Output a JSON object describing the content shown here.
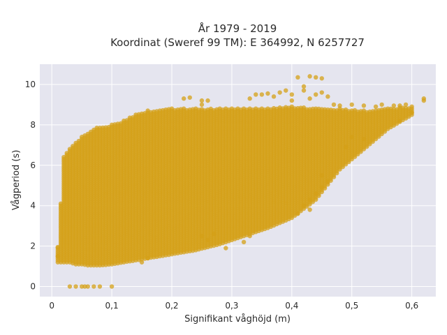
{
  "chart_data": {
    "type": "scatter",
    "title_line1": "År 1979 - 2019",
    "title_line2": "Koordinat (Sweref 99 TM): E 364992, N 6257727",
    "xlabel": "Signifikant våghöjd (m)",
    "ylabel": "Vågperiod (s)",
    "xlim": [
      -0.02,
      0.64
    ],
    "ylim": [
      -0.5,
      11
    ],
    "xticks": [
      0,
      0.1,
      0.2,
      0.3,
      0.4,
      0.5,
      0.6
    ],
    "xtick_labels": [
      "0",
      "0,1",
      "0,2",
      "0,3",
      "0,4",
      "0,5",
      "0,6"
    ],
    "yticks": [
      0,
      2,
      4,
      6,
      8,
      10
    ],
    "ytick_labels": [
      "0",
      "2",
      "4",
      "6",
      "8",
      "10"
    ],
    "grid": true,
    "background": "#e5e5ef",
    "marker_color": "#d4a017",
    "x_step": 0.005,
    "envelope": [
      {
        "x": 0.01,
        "ymin": 1.2,
        "ymax": 1.9
      },
      {
        "x": 0.02,
        "ymin": 1.2,
        "ymax": 6.4
      },
      {
        "x": 0.03,
        "ymin": 1.2,
        "ymax": 6.8
      },
      {
        "x": 0.04,
        "ymin": 1.1,
        "ymax": 7.1
      },
      {
        "x": 0.05,
        "ymin": 1.1,
        "ymax": 7.4
      },
      {
        "x": 0.06,
        "ymin": 1.05,
        "ymax": 7.6
      },
      {
        "x": 0.07,
        "ymin": 1.05,
        "ymax": 7.8
      },
      {
        "x": 0.08,
        "ymin": 1.05,
        "ymax": 7.9
      },
      {
        "x": 0.1,
        "ymin": 1.1,
        "ymax": 8.0
      },
      {
        "x": 0.12,
        "ymin": 1.2,
        "ymax": 8.2
      },
      {
        "x": 0.14,
        "ymin": 1.3,
        "ymax": 8.5
      },
      {
        "x": 0.16,
        "ymin": 1.4,
        "ymax": 8.7
      },
      {
        "x": 0.2,
        "ymin": 1.6,
        "ymax": 8.8
      },
      {
        "x": 0.24,
        "ymin": 1.8,
        "ymax": 8.8
      },
      {
        "x": 0.28,
        "ymin": 2.1,
        "ymax": 8.8
      },
      {
        "x": 0.32,
        "ymin": 2.5,
        "ymax": 8.8
      },
      {
        "x": 0.36,
        "ymin": 2.9,
        "ymax": 8.8
      },
      {
        "x": 0.4,
        "ymin": 3.4,
        "ymax": 8.9
      },
      {
        "x": 0.44,
        "ymin": 4.3,
        "ymax": 8.8
      },
      {
        "x": 0.48,
        "ymin": 5.8,
        "ymax": 8.8
      },
      {
        "x": 0.52,
        "ymin": 6.8,
        "ymax": 8.7
      },
      {
        "x": 0.56,
        "ymin": 7.8,
        "ymax": 8.8
      },
      {
        "x": 0.6,
        "ymin": 8.5,
        "ymax": 8.9
      }
    ],
    "extra_points": [
      [
        0.03,
        0.0
      ],
      [
        0.04,
        0.0
      ],
      [
        0.05,
        0.0
      ],
      [
        0.055,
        0.0
      ],
      [
        0.06,
        0.0
      ],
      [
        0.07,
        0.0
      ],
      [
        0.08,
        0.0
      ],
      [
        0.1,
        0.0
      ],
      [
        0.01,
        1.5
      ],
      [
        0.01,
        1.95
      ],
      [
        0.15,
        1.2
      ],
      [
        0.16,
        1.4
      ],
      [
        0.22,
        9.3
      ],
      [
        0.23,
        9.35
      ],
      [
        0.25,
        9.2
      ],
      [
        0.25,
        9.0
      ],
      [
        0.26,
        9.2
      ],
      [
        0.33,
        9.3
      ],
      [
        0.34,
        9.5
      ],
      [
        0.35,
        9.5
      ],
      [
        0.36,
        9.55
      ],
      [
        0.37,
        9.4
      ],
      [
        0.38,
        9.6
      ],
      [
        0.39,
        9.7
      ],
      [
        0.4,
        9.5
      ],
      [
        0.4,
        9.2
      ],
      [
        0.41,
        10.35
      ],
      [
        0.42,
        9.9
      ],
      [
        0.42,
        9.7
      ],
      [
        0.43,
        10.4
      ],
      [
        0.44,
        10.35
      ],
      [
        0.45,
        10.3
      ],
      [
        0.43,
        9.3
      ],
      [
        0.44,
        9.5
      ],
      [
        0.45,
        9.6
      ],
      [
        0.46,
        9.4
      ],
      [
        0.47,
        9.0
      ],
      [
        0.48,
        8.95
      ],
      [
        0.5,
        9.0
      ],
      [
        0.52,
        8.95
      ],
      [
        0.54,
        8.9
      ],
      [
        0.55,
        9.0
      ],
      [
        0.57,
        8.95
      ],
      [
        0.58,
        8.95
      ],
      [
        0.59,
        9.0
      ],
      [
        0.62,
        9.2
      ],
      [
        0.62,
        9.3
      ],
      [
        0.6,
        8.6
      ],
      [
        0.58,
        8.2
      ],
      [
        0.5,
        7.4
      ],
      [
        0.49,
        6.9
      ],
      [
        0.52,
        7.3
      ],
      [
        0.32,
        2.2
      ],
      [
        0.33,
        2.5
      ],
      [
        0.29,
        1.9
      ],
      [
        0.26,
        2.3
      ],
      [
        0.27,
        2.6
      ],
      [
        0.25,
        2.5
      ],
      [
        0.45,
        5.5
      ],
      [
        0.46,
        5.2
      ],
      [
        0.45,
        4.9
      ],
      [
        0.44,
        4.6
      ],
      [
        0.43,
        4.3
      ],
      [
        0.42,
        4.0
      ],
      [
        0.41,
        3.6
      ],
      [
        0.43,
        3.8
      ]
    ]
  }
}
